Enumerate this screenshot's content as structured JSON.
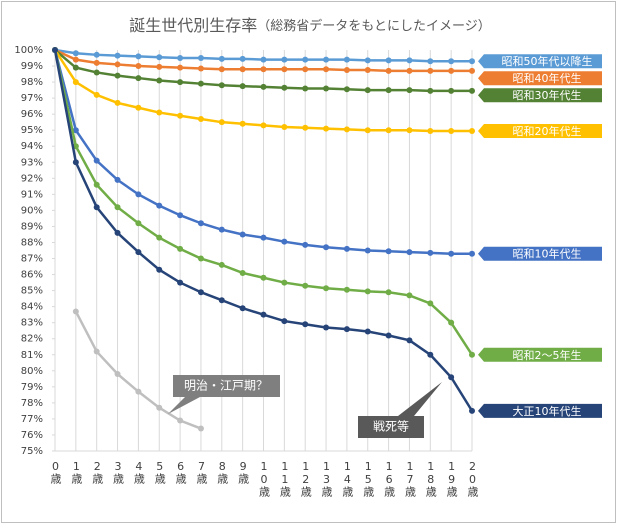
{
  "chart_data": {
    "type": "line",
    "title": "誕生世代別生存率",
    "subtitle": "（総務省データをもとにしたイメージ）",
    "categories": [
      "0歳",
      "1歳",
      "2歳",
      "3歳",
      "4歳",
      "5歳",
      "6歳",
      "7歳",
      "8歳",
      "9歳",
      "10歳",
      "11歳",
      "12歳",
      "13歳",
      "14歳",
      "15歳",
      "16歳",
      "17歳",
      "18歳",
      "19歳",
      "20歳"
    ],
    "ylim": [
      75,
      100
    ],
    "yticks": [
      {
        "value": 75,
        "label": "75%"
      },
      {
        "value": 76,
        "label": "76%"
      },
      {
        "value": 77,
        "label": "77%"
      },
      {
        "value": 78,
        "label": "78%"
      },
      {
        "value": 79,
        "label": "79%"
      },
      {
        "value": 80,
        "label": "80%"
      },
      {
        "value": 81,
        "label": "81%"
      },
      {
        "value": 82,
        "label": "82%"
      },
      {
        "value": 83,
        "label": "83%"
      },
      {
        "value": 84,
        "label": "84%"
      },
      {
        "value": 85,
        "label": "85%"
      },
      {
        "value": 86,
        "label": "86%"
      },
      {
        "value": 87,
        "label": "87%"
      },
      {
        "value": 88,
        "label": "88%"
      },
      {
        "value": 89,
        "label": "89%"
      },
      {
        "value": 90,
        "label": "90%"
      },
      {
        "value": 91,
        "label": "91%"
      },
      {
        "value": 92,
        "label": "92%"
      },
      {
        "value": 93,
        "label": "93%"
      },
      {
        "value": 94,
        "label": "94%"
      },
      {
        "value": 95,
        "label": "95%"
      },
      {
        "value": 96,
        "label": "96%"
      },
      {
        "value": 97,
        "label": "97%"
      },
      {
        "value": 98,
        "label": "98%"
      },
      {
        "value": 99,
        "label": "99%"
      },
      {
        "value": 100,
        "label": "100%"
      }
    ],
    "grid": "x",
    "series": [
      {
        "name": "昭和50年代以降生",
        "color": "#5b9bd5",
        "values": [
          100,
          99.8,
          99.7,
          99.65,
          99.6,
          99.55,
          99.5,
          99.5,
          99.45,
          99.45,
          99.4,
          99.4,
          99.4,
          99.4,
          99.4,
          99.35,
          99.35,
          99.35,
          99.3,
          99.3,
          99.3
        ]
      },
      {
        "name": "昭和40年代生",
        "color": "#ed7d31",
        "values": [
          100,
          99.4,
          99.2,
          99.1,
          99.0,
          98.95,
          98.9,
          98.85,
          98.8,
          98.8,
          98.8,
          98.8,
          98.8,
          98.8,
          98.75,
          98.75,
          98.7,
          98.7,
          98.7,
          98.7,
          98.7
        ]
      },
      {
        "name": "昭和30年代生",
        "color": "#548235",
        "values": [
          100,
          98.9,
          98.6,
          98.4,
          98.25,
          98.1,
          98.0,
          97.9,
          97.8,
          97.75,
          97.7,
          97.65,
          97.6,
          97.6,
          97.55,
          97.5,
          97.5,
          97.5,
          97.45,
          97.45,
          97.45
        ]
      },
      {
        "name": "昭和20年代生",
        "color": "#ffc000",
        "values": [
          100,
          98.0,
          97.2,
          96.7,
          96.4,
          96.1,
          95.9,
          95.7,
          95.5,
          95.4,
          95.3,
          95.2,
          95.15,
          95.1,
          95.05,
          95.0,
          95.0,
          95.0,
          94.95,
          94.95,
          94.95
        ]
      },
      {
        "name": "昭和10年代生",
        "color": "#4472c4",
        "values": [
          100,
          95.0,
          93.1,
          91.9,
          91.0,
          90.3,
          89.7,
          89.2,
          88.8,
          88.5,
          88.3,
          88.05,
          87.85,
          87.7,
          87.6,
          87.5,
          87.45,
          87.4,
          87.35,
          87.3,
          87.3
        ]
      },
      {
        "name": "昭和2〜5年生",
        "color": "#70ad47",
        "values": [
          100,
          94.0,
          91.6,
          90.2,
          89.2,
          88.3,
          87.6,
          87.0,
          86.6,
          86.1,
          85.8,
          85.5,
          85.3,
          85.15,
          85.05,
          84.95,
          84.9,
          84.7,
          84.2,
          83.0,
          81.0
        ]
      },
      {
        "name": "大正10年代生",
        "color": "#264478",
        "values": [
          100,
          93.0,
          90.2,
          88.6,
          87.4,
          86.3,
          85.5,
          84.9,
          84.4,
          83.9,
          83.5,
          83.1,
          82.9,
          82.7,
          82.6,
          82.45,
          82.2,
          81.9,
          81.0,
          79.6,
          77.5
        ]
      },
      {
        "name": "明治・江戸期？",
        "color": "#bfbfbf",
        "values": [
          null,
          83.7,
          81.2,
          79.8,
          78.7,
          77.7,
          76.9,
          76.4,
          null,
          null,
          null,
          null,
          null,
          null,
          null,
          null,
          null,
          null,
          null,
          null,
          null
        ]
      }
    ],
    "annotations": [
      "戦死等"
    ]
  }
}
